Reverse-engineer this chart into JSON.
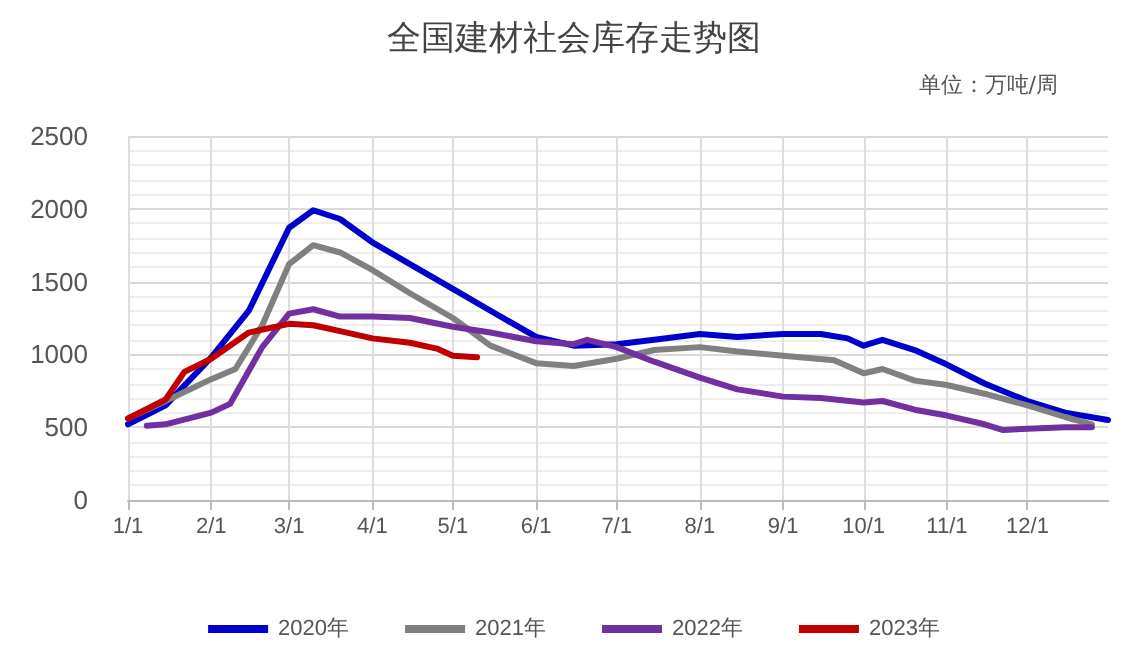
{
  "chart_data": {
    "type": "line",
    "title": "全国建材社会库存走势图",
    "subtitle": "单位：万吨/周",
    "xlim": [
      "--01-01",
      "--12-31"
    ],
    "xticks": [
      {
        "value": "--01-01",
        "label": "1/1"
      },
      {
        "value": "--02-01",
        "label": "2/1"
      },
      {
        "value": "--03-01",
        "label": "3/1"
      },
      {
        "value": "--04-01",
        "label": "4/1"
      },
      {
        "value": "--05-01",
        "label": "5/1"
      },
      {
        "value": "--06-01",
        "label": "6/1"
      },
      {
        "value": "--07-01",
        "label": "7/1"
      },
      {
        "value": "--08-01",
        "label": "8/1"
      },
      {
        "value": "--09-01",
        "label": "9/1"
      },
      {
        "value": "--10-01",
        "label": "10/1"
      },
      {
        "value": "--11-01",
        "label": "11/1"
      },
      {
        "value": "--12-01",
        "label": "12/1"
      }
    ],
    "ylim": [
      0,
      2500
    ],
    "yticks": [
      0,
      500,
      1000,
      1500,
      2000,
      2500
    ],
    "grid": true,
    "legend": "bottom",
    "marker": "none",
    "line_style": "solid",
    "series": [
      {
        "name": "2020年",
        "color": "#0000cc",
        "x": [
          "--01-01",
          "--01-15",
          "--02-01",
          "--02-15",
          "--03-01",
          "--03-10",
          "--03-20",
          "--04-01",
          "--04-15",
          "--05-01",
          "--05-15",
          "--06-01",
          "--06-15",
          "--07-01",
          "--07-15",
          "--08-01",
          "--08-15",
          "--09-01",
          "--09-15",
          "--09-25",
          "--10-01",
          "--10-08",
          "--10-20",
          "--11-01",
          "--11-15",
          "--12-01",
          "--12-15",
          "--12-31"
        ],
        "values": [
          520,
          650,
          980,
          1300,
          1870,
          1990,
          1930,
          1770,
          1620,
          1450,
          1300,
          1120,
          1060,
          1070,
          1100,
          1140,
          1120,
          1140,
          1140,
          1110,
          1060,
          1100,
          1030,
          930,
          800,
          680,
          600,
          550
        ]
      },
      {
        "name": "2021年",
        "color": "#808080",
        "x": [
          "--01-01",
          "--01-15",
          "--02-01",
          "--02-10",
          "--02-20",
          "--03-01",
          "--03-10",
          "--03-20",
          "--04-01",
          "--04-15",
          "--05-01",
          "--05-15",
          "--06-01",
          "--06-15",
          "--07-01",
          "--07-15",
          "--08-01",
          "--08-15",
          "--09-01",
          "--09-20",
          "--10-01",
          "--10-08",
          "--10-20",
          "--11-01",
          "--11-15",
          "--12-01",
          "--12-15",
          "--12-25"
        ],
        "values": [
          560,
          680,
          830,
          900,
          1200,
          1620,
          1750,
          1700,
          1580,
          1420,
          1250,
          1060,
          940,
          920,
          970,
          1030,
          1050,
          1020,
          990,
          960,
          870,
          900,
          820,
          790,
          730,
          650,
          570,
          520
        ]
      },
      {
        "name": "2022年",
        "color": "#7030a0",
        "x": [
          "--01-08",
          "--01-15",
          "--02-01",
          "--02-08",
          "--02-20",
          "--03-01",
          "--03-10",
          "--03-20",
          "--04-01",
          "--04-15",
          "--05-01",
          "--05-15",
          "--06-01",
          "--06-15",
          "--06-20",
          "--07-01",
          "--07-15",
          "--08-01",
          "--08-15",
          "--09-01",
          "--09-15",
          "--10-01",
          "--10-08",
          "--10-20",
          "--11-01",
          "--11-15",
          "--11-22",
          "--12-01",
          "--12-15",
          "--12-25"
        ],
        "values": [
          510,
          520,
          600,
          660,
          1050,
          1280,
          1310,
          1260,
          1260,
          1250,
          1190,
          1150,
          1090,
          1070,
          1100,
          1050,
          950,
          840,
          760,
          710,
          700,
          670,
          680,
          620,
          580,
          520,
          480,
          490,
          500,
          500
        ]
      },
      {
        "name": "2023年",
        "color": "#c00000",
        "x": [
          "--01-01",
          "--01-15",
          "--01-22",
          "--02-01",
          "--02-15",
          "--03-01",
          "--03-10",
          "--03-20",
          "--04-01",
          "--04-15",
          "--04-25",
          "--05-01",
          "--05-10"
        ],
        "values": [
          560,
          690,
          880,
          970,
          1150,
          1210,
          1200,
          1160,
          1110,
          1080,
          1040,
          990,
          980
        ]
      }
    ]
  }
}
